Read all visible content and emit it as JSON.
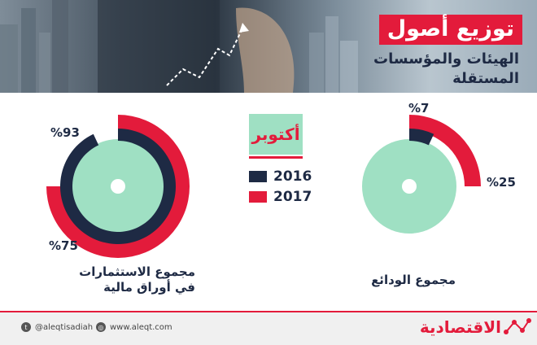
{
  "header": {
    "title": "توزيع أصول",
    "subtitle_line1": "الهيئات والمؤسسات",
    "subtitle_line2": "المستقلة"
  },
  "legend": {
    "title": "أكتوبر",
    "items": [
      {
        "label": "2016",
        "color": "#1e2a44"
      },
      {
        "label": "2017",
        "color": "#e31b3b"
      }
    ]
  },
  "colors": {
    "inner": "#9fe0c3",
    "year2016": "#1e2a44",
    "year2017": "#e31b3b"
  },
  "chart_data": [
    {
      "type": "pie",
      "title": "مجموع الاستثمارات في أوراق مالية",
      "series": [
        {
          "name": "2016",
          "values": [
            93
          ],
          "label": "%93"
        },
        {
          "name": "2017",
          "values": [
            75
          ],
          "label": "%75"
        }
      ]
    },
    {
      "type": "pie",
      "title": "مجموع الودائع",
      "series": [
        {
          "name": "2016",
          "values": [
            7
          ],
          "label": "%7"
        },
        {
          "name": "2017",
          "values": [
            25
          ],
          "label": "%25"
        }
      ]
    }
  ],
  "footer": {
    "twitter": "@aleqtisadiah",
    "website": "www.aleqt.com",
    "brand": "الاقتصادية"
  }
}
